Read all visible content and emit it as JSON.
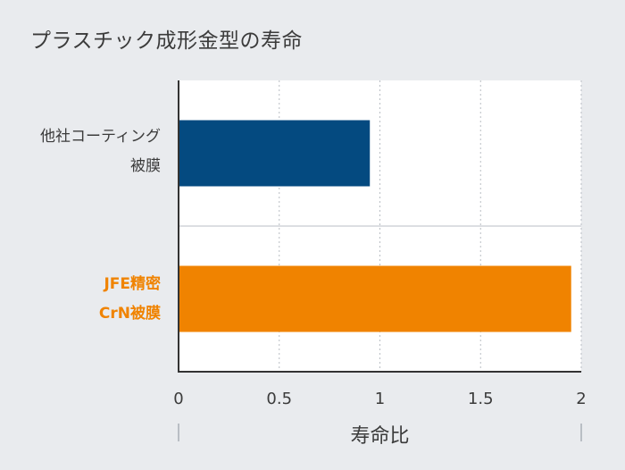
{
  "title": "プラスチック成形金型の寿命",
  "chart_data": {
    "type": "bar",
    "orientation": "horizontal",
    "title": "プラスチック成形金型の寿命",
    "xlabel": "寿命比",
    "ylabel": "",
    "xlim": [
      0,
      2
    ],
    "x_ticks": [
      "0",
      "0.5",
      "1",
      "1.5",
      "2"
    ],
    "grid": true,
    "categories": [
      {
        "line1": "他社コーティング",
        "line2": "被膜"
      },
      {
        "line1": "JFE精密",
        "line2": "CrN被膜"
      }
    ],
    "values": [
      0.95,
      1.95
    ],
    "colors": [
      "#044a80",
      "#f08300"
    ],
    "label_colors": [
      "#3b3b3b",
      "#f08300"
    ]
  },
  "colors": {
    "background": "#e9ebee",
    "plot_background": "#ffffff",
    "axis": "#333333",
    "grid": "#b9bec4"
  }
}
